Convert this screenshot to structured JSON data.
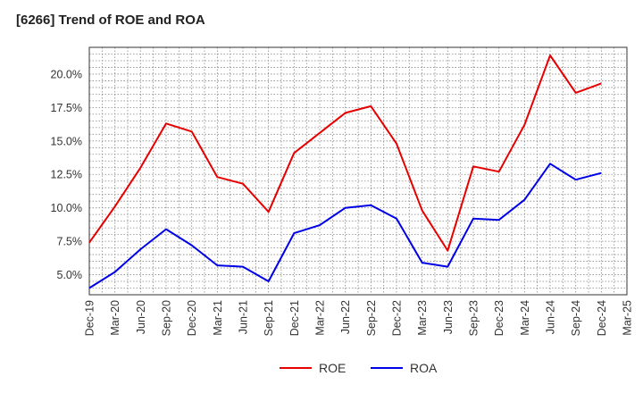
{
  "chart_data": {
    "type": "line",
    "title": "[6266]  Trend of ROE and ROA",
    "xlabel": "",
    "ylabel": "",
    "x": [
      "Dec-19",
      "Mar-20",
      "Jun-20",
      "Sep-20",
      "Dec-20",
      "Mar-21",
      "Jun-21",
      "Sep-21",
      "Dec-21",
      "Mar-22",
      "Jun-22",
      "Sep-22",
      "Dec-22",
      "Mar-23",
      "Jun-23",
      "Sep-23",
      "Dec-23",
      "Mar-24",
      "Jun-24",
      "Sep-24",
      "Dec-24"
    ],
    "x_ticks": [
      "Dec-19",
      "Mar-20",
      "Jun-20",
      "Sep-20",
      "Dec-20",
      "Mar-21",
      "Jun-21",
      "Sep-21",
      "Dec-21",
      "Mar-22",
      "Jun-22",
      "Sep-22",
      "Dec-22",
      "Mar-23",
      "Jun-23",
      "Sep-23",
      "Dec-23",
      "Mar-24",
      "Jun-24",
      "Sep-24",
      "Dec-24",
      "Mar-25"
    ],
    "y_ticks": [
      "5.0%",
      "7.5%",
      "10.0%",
      "12.5%",
      "15.0%",
      "17.5%",
      "20.0%"
    ],
    "ylim": [
      3.5,
      22.0
    ],
    "grid": true,
    "legend_position": "bottom-center",
    "series": [
      {
        "name": "ROE",
        "color": "#e60000",
        "values": [
          7.4,
          10.1,
          13.0,
          16.3,
          15.7,
          12.3,
          11.8,
          9.7,
          14.1,
          15.6,
          17.1,
          17.6,
          14.8,
          9.8,
          6.8,
          13.1,
          12.7,
          16.2,
          21.4,
          18.6,
          19.3
        ]
      },
      {
        "name": "ROA",
        "color": "#0000e6",
        "values": [
          4.0,
          5.2,
          6.9,
          8.4,
          7.2,
          5.7,
          5.6,
          4.5,
          8.1,
          8.7,
          10.0,
          10.2,
          9.2,
          5.9,
          5.6,
          9.2,
          9.1,
          10.6,
          13.3,
          12.1,
          12.6
        ]
      }
    ]
  }
}
